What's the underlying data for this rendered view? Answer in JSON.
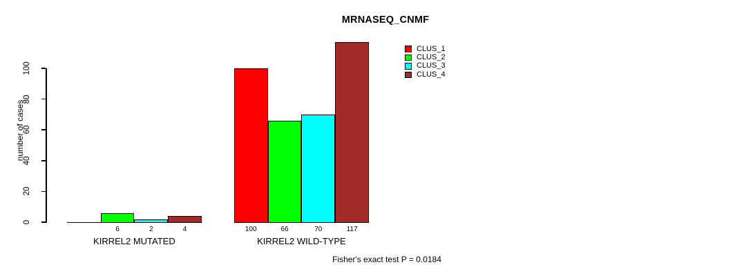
{
  "chart_data": {
    "type": "bar",
    "title": "MRNASEQ_CNMF",
    "xlabel": "",
    "ylabel": "number of cases",
    "annotation": "Fisher's exact test P = 0.0184",
    "categories": [
      "KIRREL2 MUTATED",
      "KIRREL2 WILD-TYPE"
    ],
    "series": [
      {
        "name": "CLUS_1",
        "color": "#ff0000",
        "values": [
          0,
          100
        ]
      },
      {
        "name": "CLUS_2",
        "color": "#00ff00",
        "values": [
          6,
          66
        ]
      },
      {
        "name": "CLUS_3",
        "color": "#00ffff",
        "values": [
          2,
          70
        ]
      },
      {
        "name": "CLUS_4",
        "color": "#a52a2a",
        "values": [
          4,
          117
        ]
      }
    ],
    "bar_value_labels_shown": true,
    "zero_value_labels_hidden": true,
    "yticks": [
      0,
      20,
      40,
      60,
      80,
      100
    ],
    "ylim": [
      0,
      118
    ],
    "grid": false,
    "legend_position": "top-right-inside",
    "background_color": "#ffffff",
    "text_color": "#000000"
  }
}
